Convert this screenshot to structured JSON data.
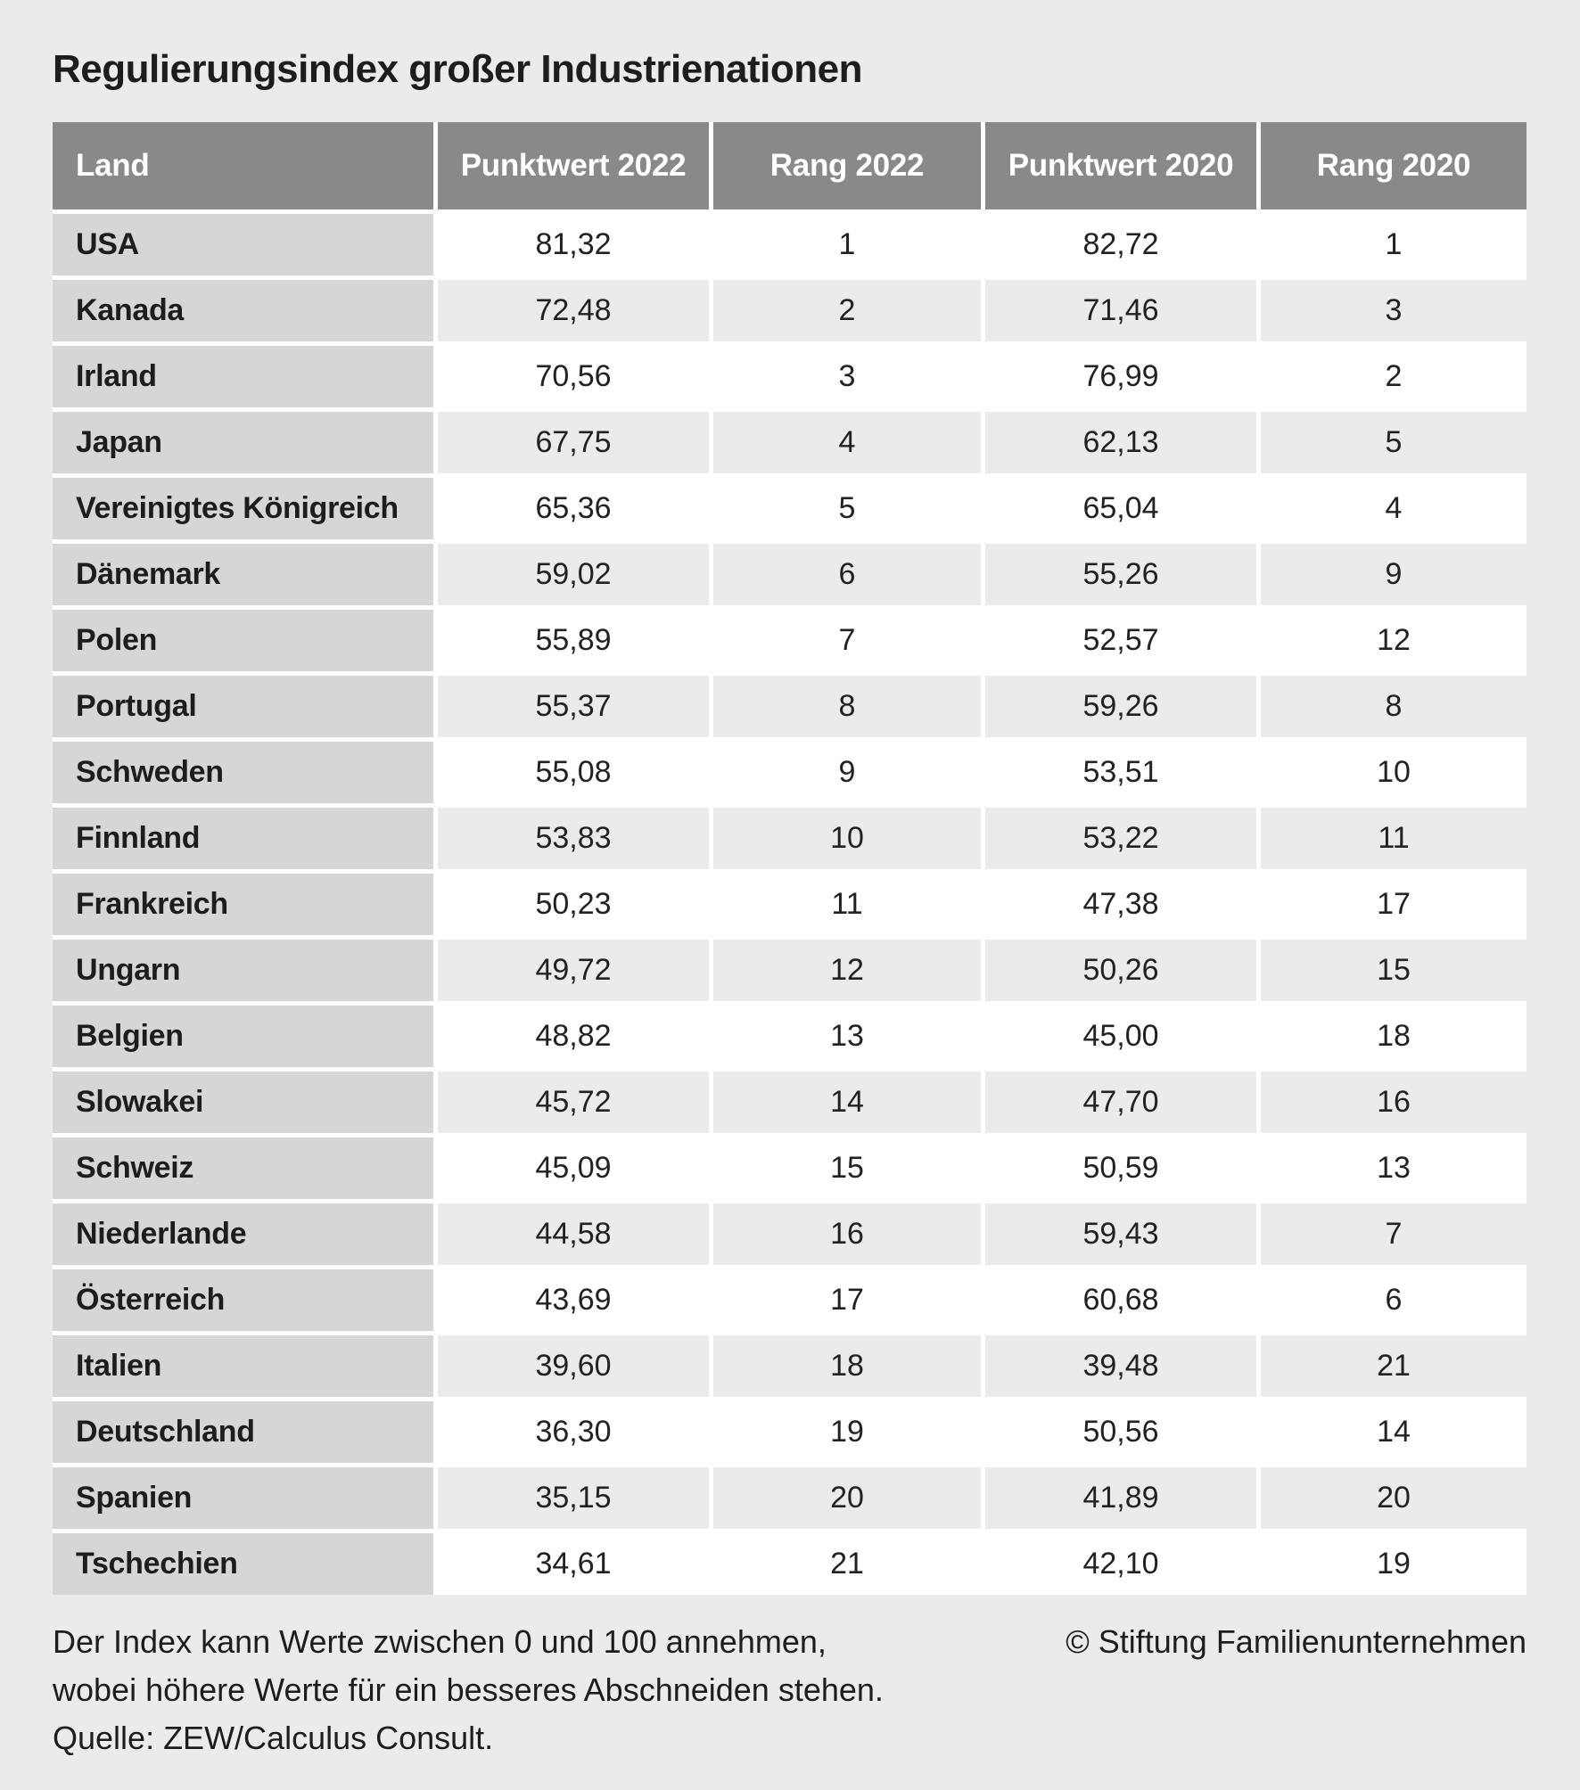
{
  "title": "Regulierungsindex großer Industrienationen",
  "chart_data": {
    "type": "table",
    "title": "Regulierungsindex großer Industrienationen",
    "columns": [
      "Land",
      "Punktwert 2022",
      "Rang 2022",
      "Punktwert 2020",
      "Rang 2020"
    ],
    "rows": [
      [
        "USA",
        "81,32",
        "1",
        "82,72",
        "1"
      ],
      [
        "Kanada",
        "72,48",
        "2",
        "71,46",
        "3"
      ],
      [
        "Irland",
        "70,56",
        "3",
        "76,99",
        "2"
      ],
      [
        "Japan",
        "67,75",
        "4",
        "62,13",
        "5"
      ],
      [
        "Vereinigtes Königreich",
        "65,36",
        "5",
        "65,04",
        "4"
      ],
      [
        "Dänemark",
        "59,02",
        "6",
        "55,26",
        "9"
      ],
      [
        "Polen",
        "55,89",
        "7",
        "52,57",
        "12"
      ],
      [
        "Portugal",
        "55,37",
        "8",
        "59,26",
        "8"
      ],
      [
        "Schweden",
        "55,08",
        "9",
        "53,51",
        "10"
      ],
      [
        "Finnland",
        "53,83",
        "10",
        "53,22",
        "11"
      ],
      [
        "Frankreich",
        "50,23",
        "11",
        "47,38",
        "17"
      ],
      [
        "Ungarn",
        "49,72",
        "12",
        "50,26",
        "15"
      ],
      [
        "Belgien",
        "48,82",
        "13",
        "45,00",
        "18"
      ],
      [
        "Slowakei",
        "45,72",
        "14",
        "47,70",
        "16"
      ],
      [
        "Schweiz",
        "45,09",
        "15",
        "50,59",
        "13"
      ],
      [
        "Niederlande",
        "44,58",
        "16",
        "59,43",
        "7"
      ],
      [
        "Österreich",
        "43,69",
        "17",
        "60,68",
        "6"
      ],
      [
        "Italien",
        "39,60",
        "18",
        "39,48",
        "21"
      ],
      [
        "Deutschland",
        "36,30",
        "19",
        "50,56",
        "14"
      ],
      [
        "Spanien",
        "35,15",
        "20",
        "41,89",
        "20"
      ],
      [
        "Tschechien",
        "34,61",
        "21",
        "42,10",
        "19"
      ]
    ],
    "value_range": [
      0,
      100
    ],
    "notes": [
      "Der Index kann Werte zwischen 0 und 100 annehmen,",
      "wobei höhere Werte für ein besseres Abschneiden stehen.",
      "Quelle: ZEW/Calculus Consult."
    ],
    "copyright": "© Stiftung Familienunternehmen"
  },
  "colors": {
    "page_bg": "#ebebeb",
    "header_bg": "#898989",
    "header_text": "#ffffff",
    "land_cell_bg": "#d6d6d6",
    "row_bg": "#ffffff",
    "row_alt_bg": "#ebebeb",
    "text": "#222222",
    "title_text": "#1d1d1b"
  }
}
